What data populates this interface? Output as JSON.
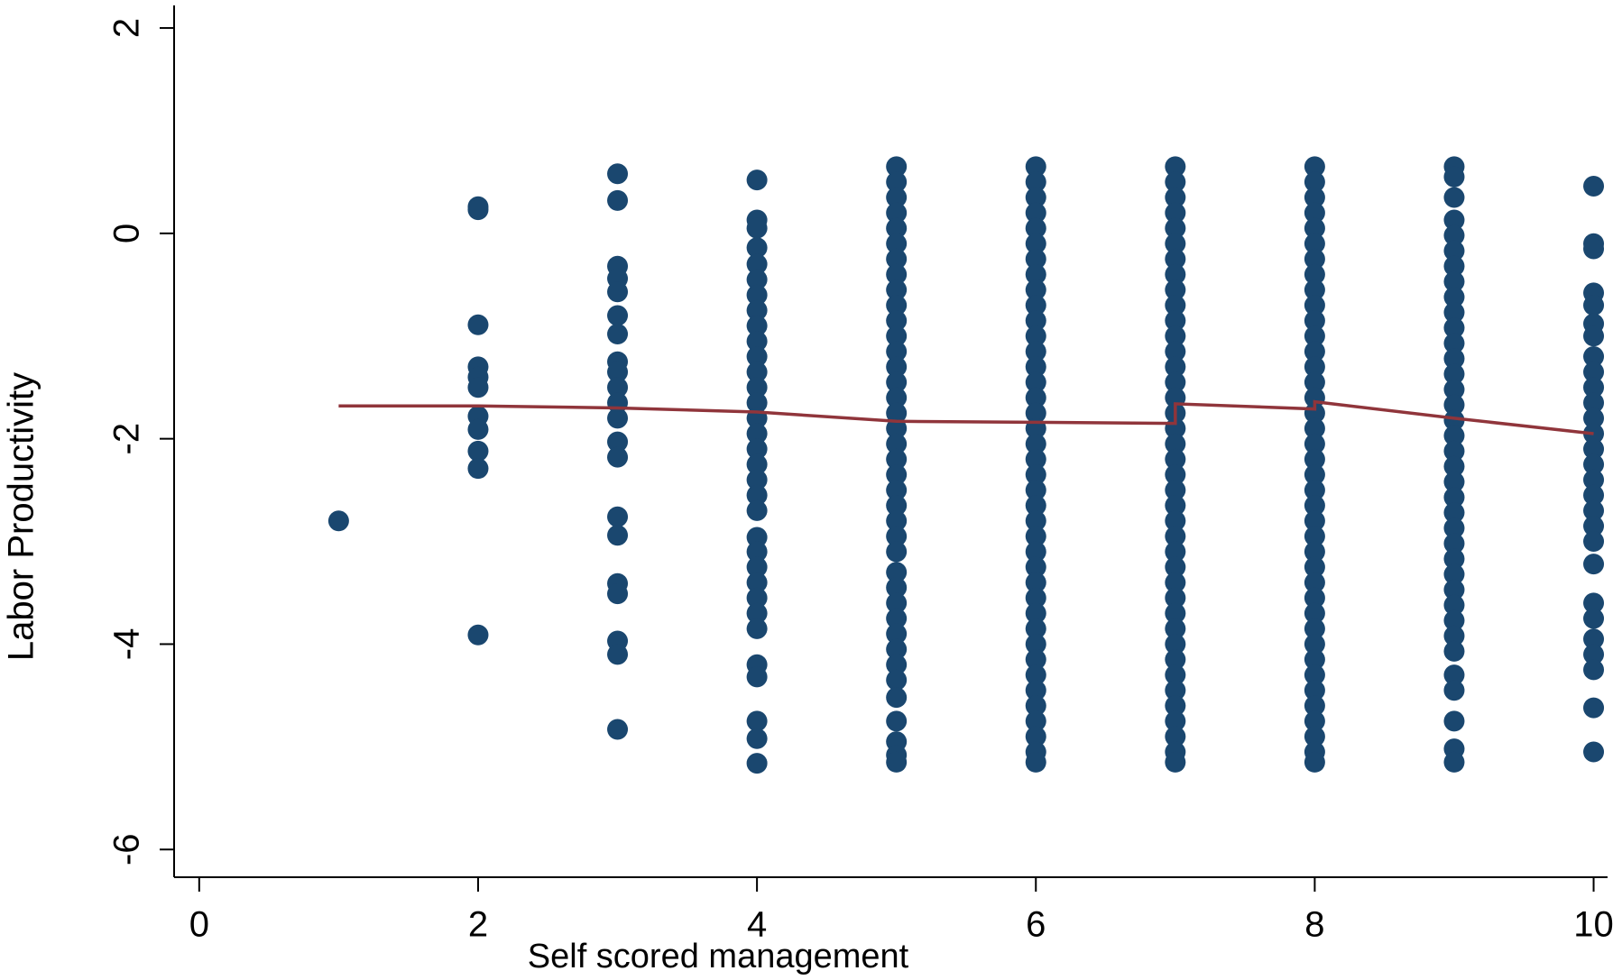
{
  "chart_data": {
    "type": "scatter",
    "x_label": "Self scored management",
    "y_label": "Labor Productivity",
    "xlim": [
      -0.18,
      10.1
    ],
    "ylim": [
      -6.27,
      2.22
    ],
    "xticks": [
      0,
      2,
      4,
      6,
      8,
      10
    ],
    "yticks": [
      -6,
      -4,
      -2,
      0,
      2
    ],
    "points": {
      "color": "#1a476f",
      "groups": [
        {
          "x": 1,
          "values": [
            -2.8
          ]
        },
        {
          "x": 2,
          "values": [
            0.26,
            0.23,
            -0.89,
            -1.3,
            -1.4,
            -1.5,
            -1.78,
            -1.91,
            -2.12,
            -2.29,
            -3.91
          ]
        },
        {
          "x": 3,
          "values": [
            0.58,
            0.32,
            -0.32,
            -0.44,
            -0.57,
            -0.8,
            -0.98,
            -1.25,
            -1.35,
            -1.5,
            -1.65,
            -1.8,
            -2.03,
            -2.18,
            -2.76,
            -2.94,
            -3.41,
            -3.51,
            -3.97,
            -4.1,
            -4.83
          ]
        },
        {
          "x": 4,
          "values": [
            0.52,
            0.13,
            0.05,
            -0.14,
            -0.3,
            -0.45,
            -0.6,
            -0.75,
            -0.9,
            -1.05,
            -1.2,
            -1.35,
            -1.5,
            -1.65,
            -1.8,
            -1.95,
            -2.1,
            -2.25,
            -2.4,
            -2.55,
            -2.7,
            -2.96,
            -3.1,
            -3.25,
            -3.4,
            -3.55,
            -3.7,
            -3.85,
            -4.2,
            -4.32,
            -4.75,
            -4.92,
            -5.16
          ]
        },
        {
          "x": 5,
          "values": [
            0.65,
            0.5,
            0.35,
            0.2,
            0.05,
            -0.1,
            -0.25,
            -0.4,
            -0.55,
            -0.7,
            -0.85,
            -1,
            -1.15,
            -1.3,
            -1.45,
            -1.6,
            -1.75,
            -1.9,
            -2.05,
            -2.2,
            -2.35,
            -2.5,
            -2.65,
            -2.8,
            -2.95,
            -3.1,
            -3.3,
            -3.45,
            -3.6,
            -3.75,
            -3.9,
            -4.05,
            -4.2,
            -4.35,
            -4.52,
            -4.75,
            -4.95,
            -5.08,
            -5.15
          ]
        },
        {
          "x": 6,
          "values": [
            0.65,
            0.5,
            0.35,
            0.2,
            0.05,
            -0.1,
            -0.25,
            -0.4,
            -0.55,
            -0.7,
            -0.85,
            -1,
            -1.15,
            -1.3,
            -1.45,
            -1.6,
            -1.75,
            -1.9,
            -2.05,
            -2.2,
            -2.35,
            -2.5,
            -2.65,
            -2.8,
            -2.95,
            -3.1,
            -3.25,
            -3.4,
            -3.55,
            -3.7,
            -3.85,
            -4,
            -4.15,
            -4.3,
            -4.45,
            -4.6,
            -4.75,
            -4.9,
            -5.05,
            -5.15
          ]
        },
        {
          "x": 7,
          "values": [
            0.65,
            0.5,
            0.35,
            0.2,
            0.05,
            -0.1,
            -0.25,
            -0.4,
            -0.55,
            -0.7,
            -0.85,
            -1,
            -1.15,
            -1.3,
            -1.45,
            -1.6,
            -1.75,
            -1.9,
            -2.05,
            -2.2,
            -2.35,
            -2.5,
            -2.65,
            -2.8,
            -2.95,
            -3.1,
            -3.25,
            -3.4,
            -3.55,
            -3.7,
            -3.85,
            -4,
            -4.15,
            -4.3,
            -4.45,
            -4.6,
            -4.75,
            -4.9,
            -5.05,
            -5.15
          ]
        },
        {
          "x": 8,
          "values": [
            0.65,
            0.5,
            0.35,
            0.2,
            0.05,
            -0.1,
            -0.25,
            -0.4,
            -0.55,
            -0.7,
            -0.85,
            -1,
            -1.15,
            -1.3,
            -1.45,
            -1.6,
            -1.75,
            -1.9,
            -2.05,
            -2.2,
            -2.35,
            -2.5,
            -2.65,
            -2.8,
            -2.95,
            -3.1,
            -3.25,
            -3.4,
            -3.55,
            -3.7,
            -3.85,
            -4,
            -4.15,
            -4.3,
            -4.45,
            -4.6,
            -4.75,
            -4.9,
            -5.05,
            -5.15
          ]
        },
        {
          "x": 9,
          "values": [
            0.65,
            0.55,
            0.35,
            0.13,
            -0.02,
            -0.17,
            -0.32,
            -0.47,
            -0.62,
            -0.77,
            -0.92,
            -1.07,
            -1.22,
            -1.37,
            -1.52,
            -1.67,
            -1.82,
            -1.97,
            -2.12,
            -2.27,
            -2.42,
            -2.57,
            -2.72,
            -2.87,
            -3.02,
            -3.17,
            -3.32,
            -3.47,
            -3.62,
            -3.77,
            -3.92,
            -4.07,
            -4.3,
            -4.45,
            -4.75,
            -5.02,
            -5.15
          ]
        },
        {
          "x": 10,
          "values": [
            0.46,
            -0.1,
            -0.15,
            -0.58,
            -0.7,
            -0.88,
            -1,
            -1.2,
            -1.35,
            -1.5,
            -1.65,
            -1.8,
            -1.95,
            -2.1,
            -2.25,
            -2.4,
            -2.55,
            -2.7,
            -2.85,
            -3,
            -3.22,
            -3.6,
            -3.75,
            -3.95,
            -4.1,
            -4.25,
            -4.62,
            -5.05
          ]
        }
      ]
    },
    "fit": {
      "color": "#90353b",
      "x": [
        1,
        2,
        3,
        4,
        5,
        6,
        7,
        7,
        8,
        8,
        9,
        10
      ],
      "y": [
        -1.68,
        -1.68,
        -1.7,
        -1.74,
        -1.83,
        -1.84,
        -1.85,
        -1.66,
        -1.71,
        -1.64,
        -1.8,
        -1.95
      ]
    }
  }
}
